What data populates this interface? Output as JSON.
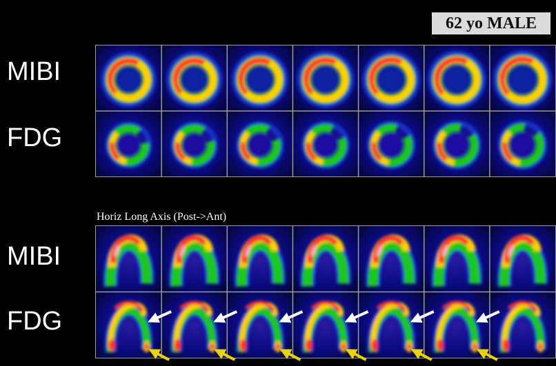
{
  "patient": {
    "label": "62 yo MALE"
  },
  "short_axis": {
    "rows": [
      {
        "label": "MIBI",
        "panels": 7,
        "pattern": "ring-mibi"
      },
      {
        "label": "FDG",
        "panels": 7,
        "pattern": "ring-fdg"
      }
    ]
  },
  "long_axis": {
    "title": "Horiz Long Axis (Post->Ant)",
    "rows": [
      {
        "label": "MIBI",
        "panels": 7,
        "pattern": "arch-mibi"
      },
      {
        "label": "FDG",
        "panels": 7,
        "pattern": "arch-fdg"
      }
    ]
  },
  "arrows": {
    "white_color": "#ffffff",
    "yellow_color": "#e8d400"
  },
  "colors": {
    "background": "#0a0a80",
    "grid_line": "#9a9a9a",
    "hot": "#ff3030",
    "mid": "#ffd000",
    "cool": "#1ec81e",
    "low": "#2040e0"
  }
}
